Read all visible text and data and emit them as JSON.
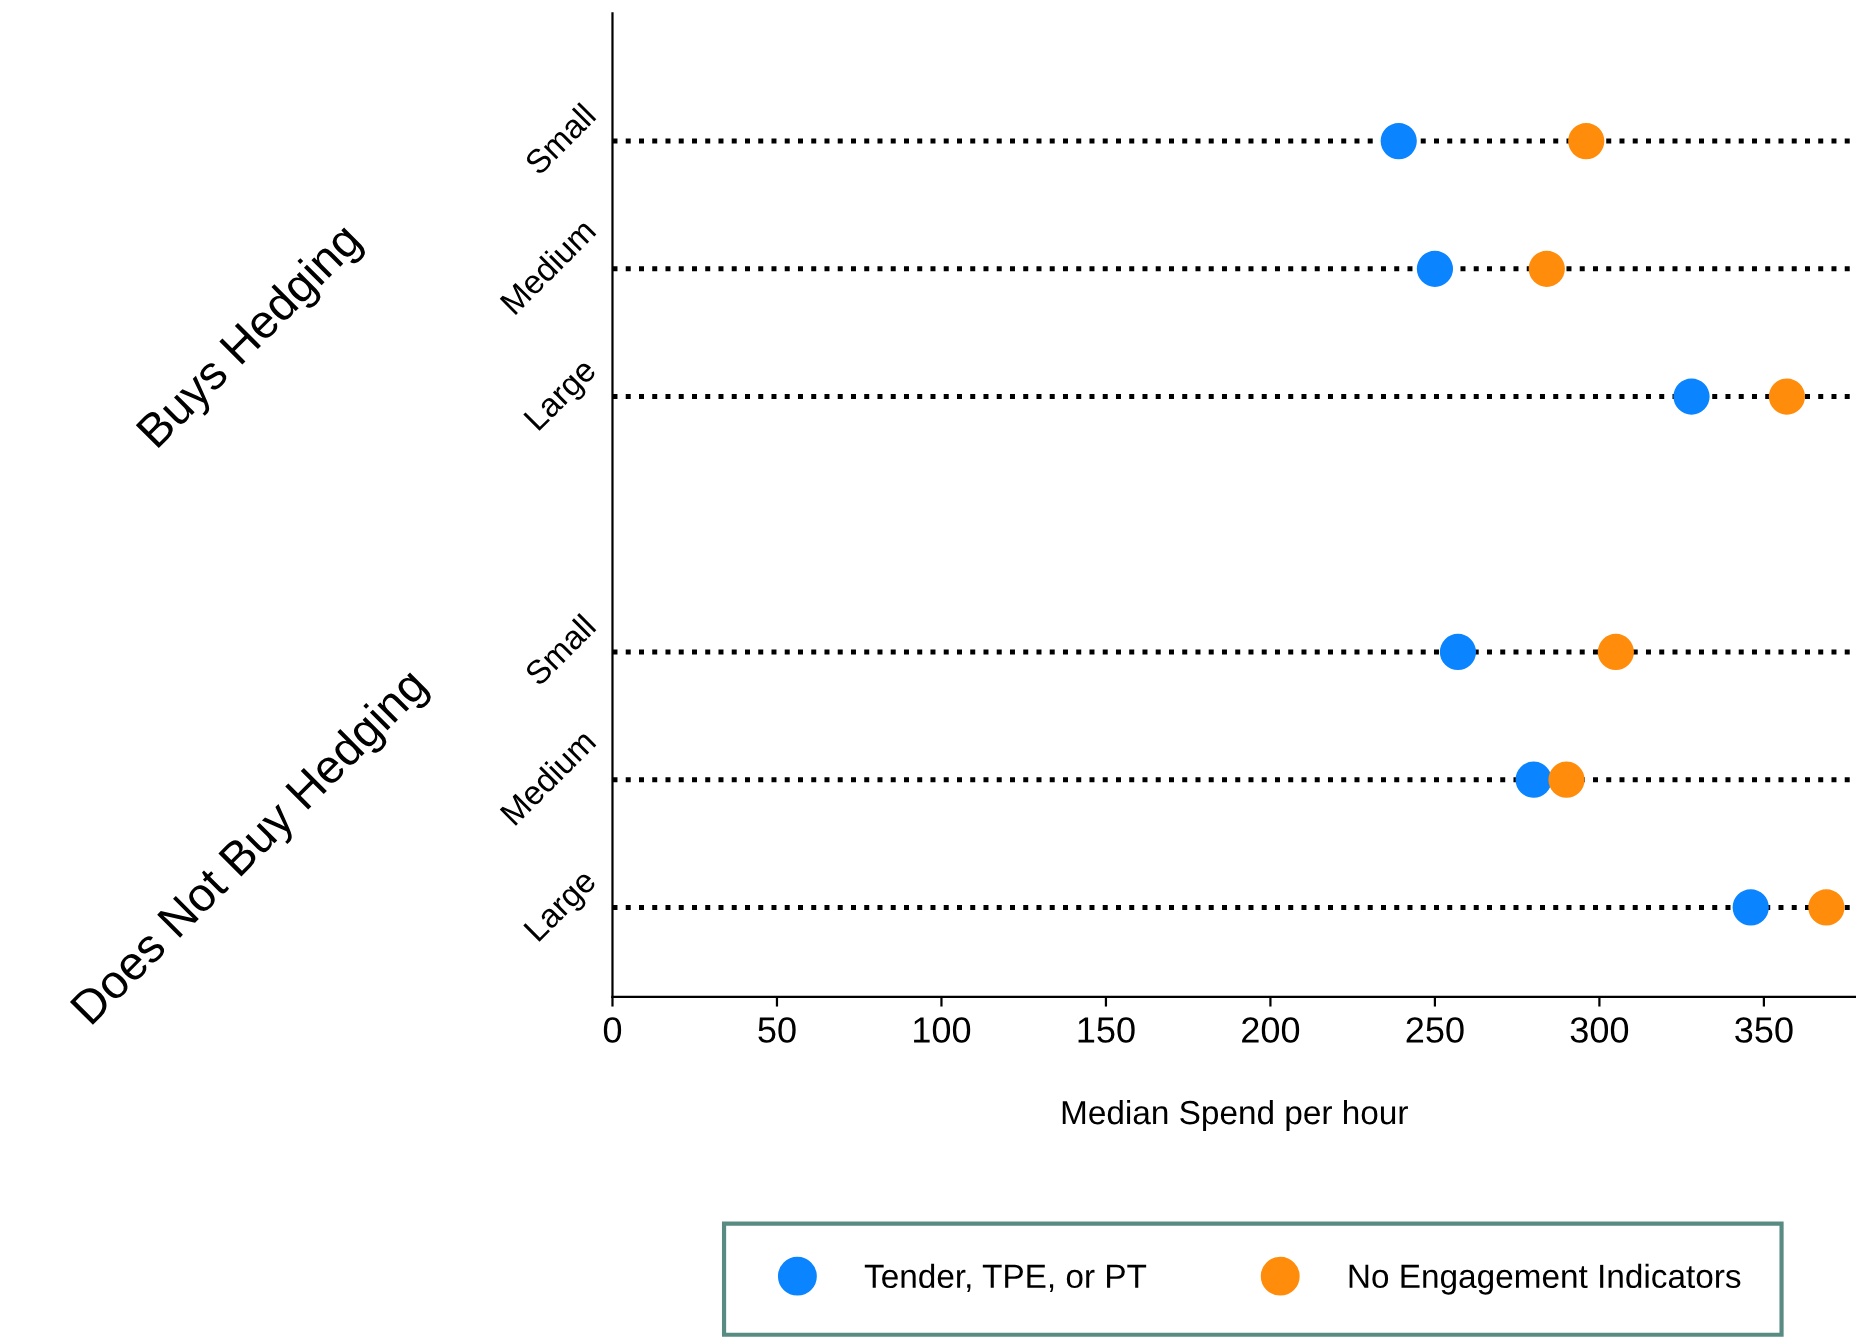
{
  "chart_data": {
    "type": "scatter",
    "orientation": "horizontal",
    "categories": [
      "Small",
      "Medium",
      "Large",
      null,
      "Small",
      "Medium",
      "Large"
    ],
    "series": [
      {
        "name": "Tender, TPE, or PT",
        "color": "#0a84ff",
        "values": [
          239,
          250,
          328,
          null,
          257,
          280,
          346
        ]
      },
      {
        "name": "No Engagement Indicators",
        "color": "#ff8c0a",
        "values": [
          296,
          284,
          357,
          null,
          305,
          290,
          369
        ]
      }
    ],
    "xlabel": "Median Spend per hour",
    "xlim": [
      0,
      378
    ],
    "xticks": [
      0,
      50,
      100,
      150,
      200,
      250,
      300,
      350
    ],
    "annotations": [
      "Buys Hedging",
      "Does Not Buy Hedging"
    ],
    "grid": "y",
    "line_style": "dotted",
    "marker": "circle",
    "legend": "bottom"
  }
}
